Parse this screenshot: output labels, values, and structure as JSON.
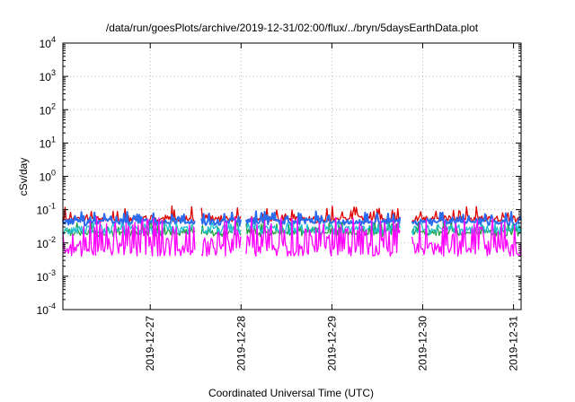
{
  "chart_data": {
    "type": "line",
    "title": "/data/run/goesPlots/archive/2019-12-31/02:00/flux/../bryn/5daysEarthData.plot",
    "xlabel": "Coordinated Universal Time (UTC)",
    "ylabel": "cSv/day",
    "yscale": "log",
    "ylim": [
      0.0001,
      10000
    ],
    "xlim": [
      "2019-12-26 00:55",
      "2019-12-31 02:00"
    ],
    "grid": true,
    "legend": "none",
    "yticks": [
      {
        "base": "10",
        "exp": "-4",
        "value": 0.0001
      },
      {
        "base": "10",
        "exp": "-3",
        "value": 0.001
      },
      {
        "base": "10",
        "exp": "-2",
        "value": 0.01
      },
      {
        "base": "10",
        "exp": "-1",
        "value": 0.1
      },
      {
        "base": "10",
        "exp": "0",
        "value": 1
      },
      {
        "base": "10",
        "exp": "1",
        "value": 10
      },
      {
        "base": "10",
        "exp": "2",
        "value": 100
      },
      {
        "base": "10",
        "exp": "3",
        "value": 1000
      },
      {
        "base": "10",
        "exp": "4",
        "value": 10000
      }
    ],
    "xticks": [
      {
        "label": "2019-12-27",
        "value": "2019-12-27 00:00"
      },
      {
        "label": "2019-12-28",
        "value": "2019-12-28 00:00"
      },
      {
        "label": "2019-12-29",
        "value": "2019-12-29 00:00"
      },
      {
        "label": "2019-12-30",
        "value": "2019-12-30 00:00"
      },
      {
        "label": "2019-12-31",
        "value": "2019-12-31 00:00"
      }
    ],
    "gaps": [
      [
        "2019-12-27 12:00",
        "2019-12-27 13:30"
      ],
      [
        "2019-12-28 00:00",
        "2019-12-28 01:15"
      ],
      [
        "2019-12-29 18:00",
        "2019-12-29 21:00"
      ]
    ],
    "series": [
      {
        "color": "#dd0000",
        "values_range": [
          0.03,
          0.13
        ],
        "typical": 0.055
      },
      {
        "color": "#2a6cf0",
        "values_range": [
          0.025,
          0.09
        ],
        "typical": 0.045
      },
      {
        "color": "#22a040",
        "values_range": [
          0.012,
          0.04
        ],
        "typical": 0.022
      },
      {
        "color": "#20c0d0",
        "values_range": [
          0.012,
          0.04
        ],
        "typical": 0.03
      },
      {
        "color": "#ff00ff",
        "values_range": [
          0.004,
          0.06
        ],
        "typical": 0.009
      }
    ]
  }
}
